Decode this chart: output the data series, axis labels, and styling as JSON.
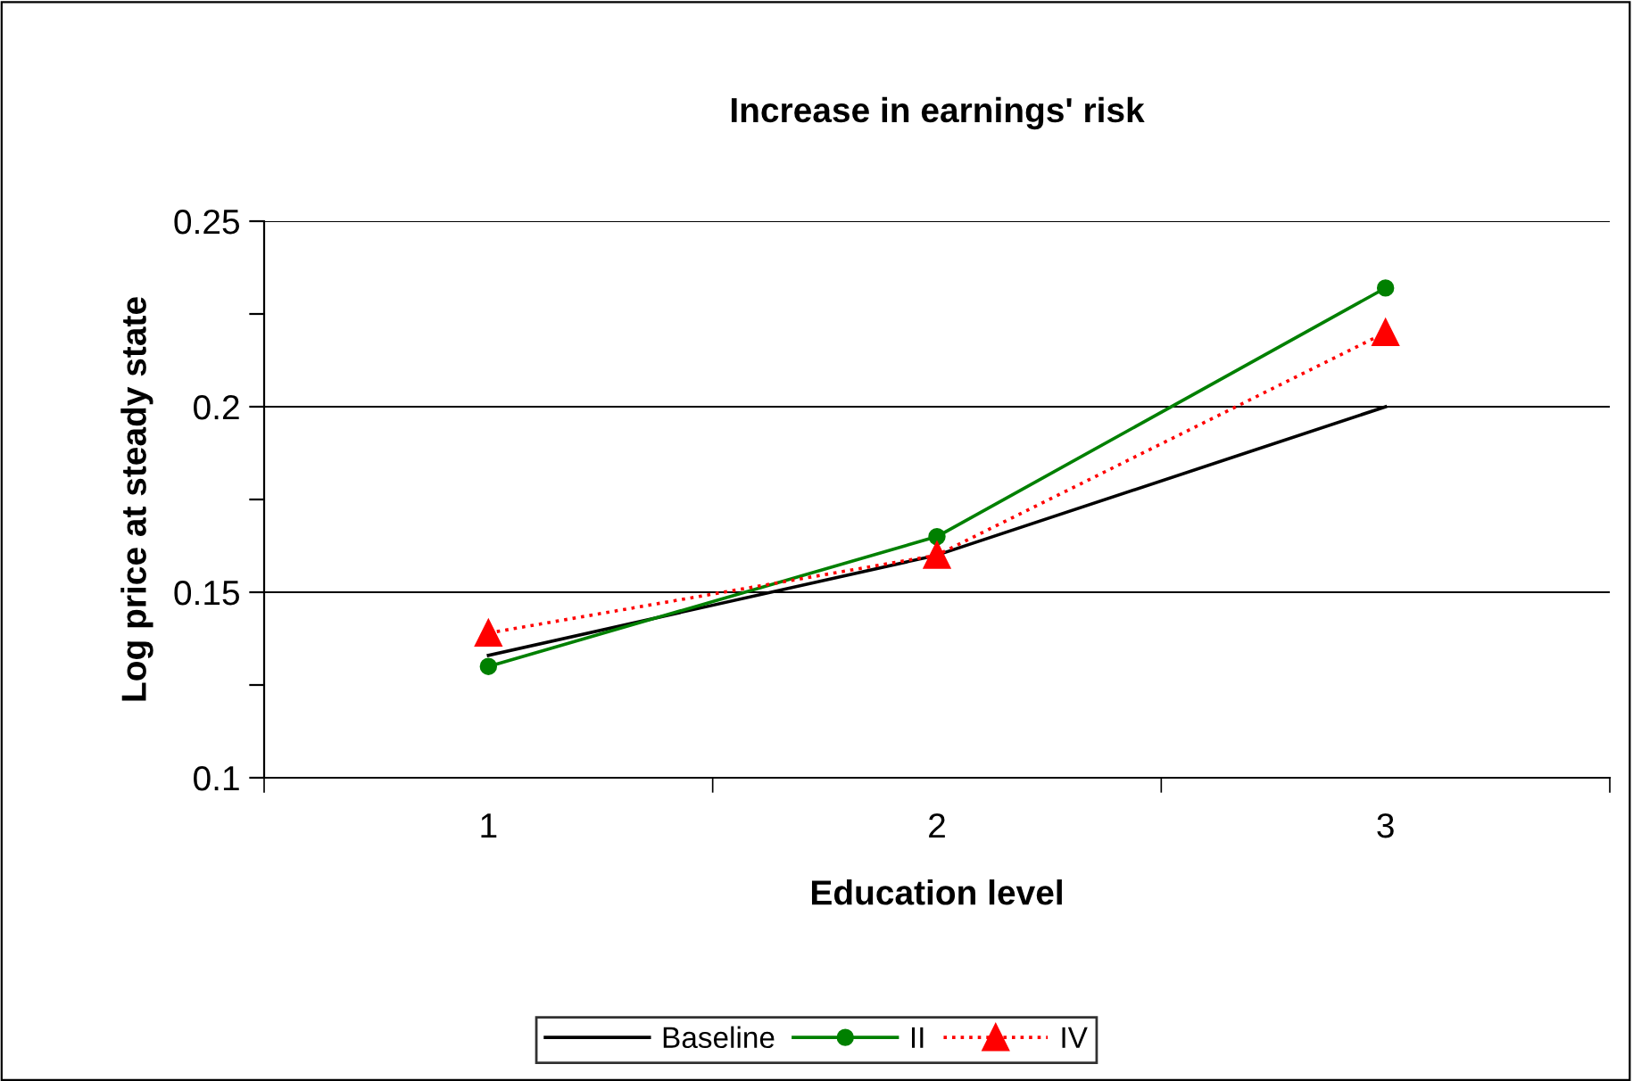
{
  "chart_data": {
    "type": "line",
    "title": "Increase in earnings' risk",
    "xlabel": "Education level",
    "ylabel": "Log price at steady state",
    "categories": [
      "1",
      "2",
      "3"
    ],
    "series": [
      {
        "name": "Baseline",
        "color": "#000000",
        "values": [
          0.133,
          0.16,
          0.2
        ],
        "marker": "none",
        "line_style": "solid"
      },
      {
        "name": "II",
        "color": "#008000",
        "values": [
          0.13,
          0.165,
          0.232
        ],
        "marker": "circle",
        "line_style": "solid"
      },
      {
        "name": "IV",
        "color": "#ff0000",
        "values": [
          0.139,
          0.16,
          0.22
        ],
        "marker": "triangle",
        "line_style": "dotted"
      }
    ],
    "ylim": [
      0.1,
      0.25
    ],
    "yticks": [
      0.1,
      {
        "value": 0.125,
        "label": null
      },
      0.15,
      {
        "value": 0.175,
        "label": null
      },
      0.2,
      {
        "value": 0.225,
        "label": null
      },
      0.25
    ],
    "grid": "y",
    "legend": "bottom"
  }
}
